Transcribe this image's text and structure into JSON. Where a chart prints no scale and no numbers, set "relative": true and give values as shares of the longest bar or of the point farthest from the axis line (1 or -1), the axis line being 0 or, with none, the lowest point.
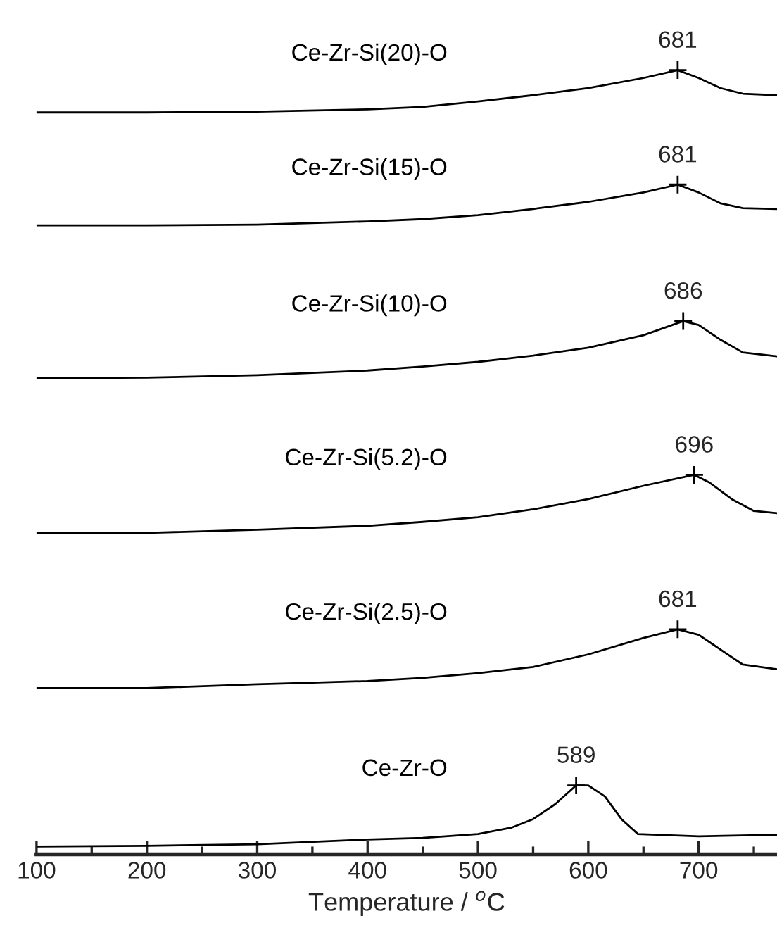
{
  "chart_data": {
    "type": "line",
    "relative": true,
    "xlabel": "Temperature / $^{o}$C",
    "xlim": [
      100,
      771
    ],
    "xticks": [
      100,
      200,
      300,
      400,
      500,
      600,
      700
    ],
    "grid": false,
    "legend": false,
    "marker": "none",
    "line_style": "solid",
    "series": [
      {
        "name": "Ce-Zr-Si(20)-O",
        "color": "#000000",
        "x": [
          100,
          200,
          300,
          400,
          450,
          500,
          550,
          600,
          650,
          681,
          700,
          720,
          740,
          771
        ],
        "values": [
          0.946,
          0.946,
          0.947,
          0.95,
          0.953,
          0.96,
          0.968,
          0.977,
          0.99,
          1.0,
          0.99,
          0.977,
          0.97,
          0.968
        ]
      },
      {
        "name": "Ce-Zr-Si(15)-O",
        "color": "#000000",
        "x": [
          100,
          200,
          300,
          400,
          450,
          500,
          550,
          600,
          650,
          681,
          700,
          720,
          740,
          771
        ],
        "values": [
          0.802,
          0.802,
          0.803,
          0.807,
          0.81,
          0.815,
          0.823,
          0.832,
          0.844,
          0.854,
          0.844,
          0.83,
          0.824,
          0.823
        ]
      },
      {
        "name": "Ce-Zr-Si(10)-O",
        "color": "#000000",
        "x": [
          100,
          200,
          300,
          400,
          450,
          500,
          550,
          600,
          650,
          686,
          700,
          720,
          740,
          771
        ],
        "values": [
          0.607,
          0.608,
          0.611,
          0.617,
          0.622,
          0.628,
          0.636,
          0.646,
          0.662,
          0.68,
          0.675,
          0.656,
          0.64,
          0.635
        ]
      },
      {
        "name": "Ce-Zr-Si(5.2)-O",
        "color": "#000000",
        "x": [
          100,
          200,
          300,
          400,
          450,
          500,
          550,
          600,
          650,
          696,
          710,
          730,
          750,
          771
        ],
        "values": [
          0.41,
          0.41,
          0.414,
          0.419,
          0.424,
          0.43,
          0.44,
          0.453,
          0.47,
          0.484,
          0.474,
          0.453,
          0.438,
          0.435
        ]
      },
      {
        "name": "Ce-Zr-Si(2.5)-O",
        "color": "#000000",
        "x": [
          100,
          200,
          300,
          350,
          400,
          450,
          500,
          550,
          600,
          650,
          681,
          700,
          720,
          740,
          771
        ],
        "values": [
          0.212,
          0.212,
          0.217,
          0.219,
          0.221,
          0.225,
          0.231,
          0.239,
          0.255,
          0.276,
          0.287,
          0.28,
          0.261,
          0.242,
          0.236
        ]
      },
      {
        "name": "Ce-Zr-O",
        "color": "#000000",
        "x": [
          100,
          200,
          300,
          400,
          450,
          500,
          530,
          550,
          570,
          589,
          600,
          615,
          630,
          645,
          700,
          771
        ],
        "values": [
          0.01,
          0.011,
          0.013,
          0.019,
          0.021,
          0.026,
          0.034,
          0.045,
          0.064,
          0.088,
          0.088,
          0.074,
          0.045,
          0.026,
          0.023,
          0.025
        ]
      }
    ],
    "annotations": [
      {
        "text": "681",
        "x": 681,
        "y": 1.0
      },
      {
        "text": "681",
        "x": 681,
        "y": 0.854
      },
      {
        "text": "686",
        "x": 686,
        "y": 0.68
      },
      {
        "text": "696",
        "x": 696,
        "y": 0.484
      },
      {
        "text": "681",
        "x": 681,
        "y": 0.287
      },
      {
        "text": "589",
        "x": 589,
        "y": 0.088
      }
    ]
  }
}
